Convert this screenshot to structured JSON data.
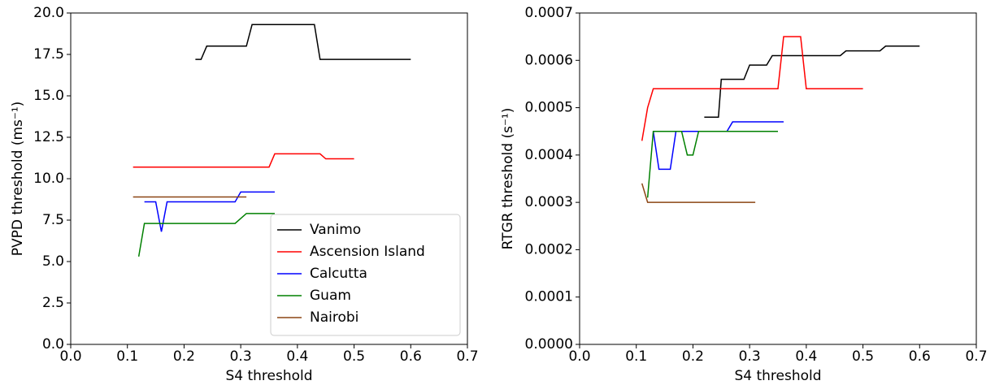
{
  "chart_data": [
    {
      "type": "line",
      "xlabel": "S4 threshold",
      "ylabel": "PVPD threshold (ms⁻¹)",
      "xlim": [
        0,
        0.7
      ],
      "ylim": [
        0,
        20
      ],
      "xticks": [
        {
          "value": 0,
          "label": "0.0"
        },
        0.1,
        0.2,
        0.3,
        0.4,
        0.5,
        0.6,
        0.7
      ],
      "yticks": [
        {
          "value": 0,
          "label": "0.0"
        },
        2.5,
        {
          "value": 5,
          "label": "5.0"
        },
        7.5,
        {
          "value": 10,
          "label": "10.0"
        },
        12.5,
        {
          "value": 15,
          "label": "15.0"
        },
        17.5,
        {
          "value": 20,
          "label": "20.0"
        }
      ],
      "legend": "lower right",
      "series": [
        {
          "name": "Vanimo",
          "color": "#000000",
          "x": [
            0.22,
            0.23,
            0.24,
            0.31,
            0.32,
            0.43,
            0.44,
            0.6
          ],
          "values": [
            17.2,
            17.2,
            18.0,
            18.0,
            19.3,
            19.3,
            17.2,
            17.2
          ]
        },
        {
          "name": "Ascension Island",
          "color": "#ff0000",
          "x": [
            0.11,
            0.35,
            0.36,
            0.44,
            0.45,
            0.5
          ],
          "values": [
            10.7,
            10.7,
            11.5,
            11.5,
            11.2,
            11.2
          ]
        },
        {
          "name": "Calcutta",
          "color": "#0000ff",
          "x": [
            0.13,
            0.15,
            0.16,
            0.17,
            0.29,
            0.3,
            0.36
          ],
          "values": [
            8.6,
            8.6,
            6.8,
            8.6,
            8.6,
            9.2,
            9.2
          ]
        },
        {
          "name": "Guam",
          "color": "#008000",
          "x": [
            0.12,
            0.13,
            0.29,
            0.31,
            0.36
          ],
          "values": [
            5.3,
            7.3,
            7.3,
            7.9,
            7.9
          ]
        },
        {
          "name": "Nairobi",
          "color": "#8b4513",
          "x": [
            0.11,
            0.31
          ],
          "values": [
            8.9,
            8.9
          ]
        }
      ]
    },
    {
      "type": "line",
      "xlabel": "S4 threshold",
      "ylabel": "RTGR threshold (s⁻¹)",
      "xlim": [
        0,
        0.7
      ],
      "ylim": [
        0,
        0.0007
      ],
      "xticks": [
        {
          "value": 0,
          "label": "0.0"
        },
        0.1,
        0.2,
        0.3,
        0.4,
        0.5,
        0.6,
        0.7
      ],
      "yticks": [
        {
          "value": 0,
          "label": "0.0000"
        },
        0.0001,
        0.0002,
        0.0003,
        0.0004,
        0.0005,
        0.0006,
        0.0007
      ],
      "series": [
        {
          "color": "#000000",
          "x": [
            0.22,
            0.245,
            0.25,
            0.29,
            0.3,
            0.33,
            0.34,
            0.46,
            0.47,
            0.53,
            0.54,
            0.6
          ],
          "values": [
            0.00048,
            0.00048,
            0.00056,
            0.00056,
            0.00059,
            0.00059,
            0.00061,
            0.00061,
            0.00062,
            0.00062,
            0.00063,
            0.00063
          ]
        },
        {
          "color": "#ff0000",
          "x": [
            0.11,
            0.12,
            0.13,
            0.35,
            0.36,
            0.39,
            0.4,
            0.5
          ],
          "values": [
            0.00043,
            0.0005,
            0.00054,
            0.00054,
            0.00065,
            0.00065,
            0.00054,
            0.00054
          ]
        },
        {
          "color": "#0000ff",
          "x": [
            0.13,
            0.14,
            0.16,
            0.17,
            0.26,
            0.27,
            0.36
          ],
          "values": [
            0.00045,
            0.00037,
            0.00037,
            0.00045,
            0.00045,
            0.00047,
            0.00047
          ]
        },
        {
          "color": "#008000",
          "x": [
            0.12,
            0.13,
            0.18,
            0.19,
            0.2,
            0.21,
            0.35
          ],
          "values": [
            0.00031,
            0.00045,
            0.00045,
            0.0004,
            0.0004,
            0.00045,
            0.00045
          ]
        },
        {
          "color": "#8b4513",
          "x": [
            0.11,
            0.12,
            0.31
          ],
          "values": [
            0.00034,
            0.0003,
            0.0003
          ]
        }
      ]
    }
  ]
}
